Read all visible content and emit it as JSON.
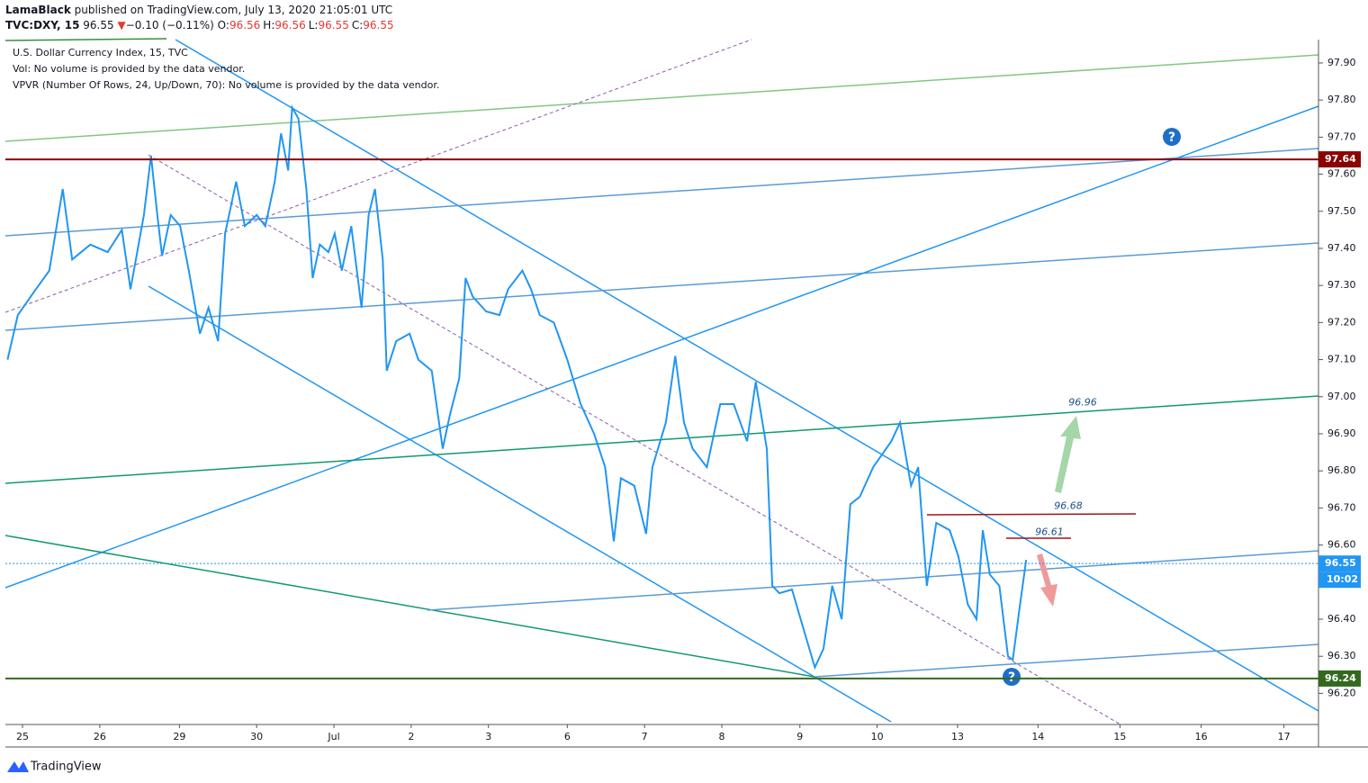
{
  "header": {
    "author": "LamaBlack",
    "published": "published on TradingView.com, July 13, 2020 21:05:01 UTC",
    "symbol": "TVC:DXY, 15",
    "price": "96.55",
    "arrow": "▼",
    "change": "−0.10 (−0.11%)",
    "ohlc": [
      {
        "label": "O:",
        "value": "96.56"
      },
      {
        "label": "H:",
        "value": "96.56"
      },
      {
        "label": "L:",
        "value": "96.55"
      },
      {
        "label": "C:",
        "value": "96.55"
      }
    ]
  },
  "legend": [
    "U.S. Dollar Currency Index, 15, TVC",
    "Vol: No volume is provided by the data vendor.",
    "VPVR (Number Of Rows, 24, Up/Down, 70): No volume is provided by the data vendor."
  ],
  "chart_data": {
    "type": "line",
    "x": [
      -0.19,
      -0.06,
      0.17,
      0.34,
      0.51,
      0.63,
      0.86,
      1.08,
      1.26,
      1.37,
      1.54,
      1.63,
      1.71,
      1.77,
      1.88,
      2.0,
      2.11,
      2.25,
      2.36,
      2.48,
      2.57,
      2.71,
      2.82,
      2.97,
      3.08,
      3.2,
      3.28,
      3.37,
      3.42,
      3.5,
      3.6,
      3.68,
      3.77,
      3.88,
      3.96,
      4.05,
      4.17,
      4.3,
      4.39,
      4.47,
      4.57,
      4.62,
      4.74,
      4.91,
      5.02,
      5.19,
      5.33,
      5.42,
      5.54,
      5.62,
      5.71,
      5.88,
      6.05,
      6.16,
      6.34,
      6.45,
      6.56,
      6.74,
      6.91,
      7.08,
      7.25,
      7.39,
      7.5,
      7.59,
      7.76,
      7.91,
      7.99,
      8.16,
      8.28,
      8.39,
      8.5,
      8.68,
      8.85,
      9.02,
      9.19,
      9.3,
      9.44,
      9.51,
      9.6,
      9.76,
      9.87,
      10.05,
      10.16,
      10.27,
      10.39,
      10.5,
      10.62,
      10.79,
      11.02,
      11.13,
      11.27,
      11.36,
      11.47,
      11.59,
      11.76,
      11.87,
      11.99,
      12.1,
      12.18,
      12.27,
      12.39,
      12.5,
      12.56,
      12.64,
      12.73
    ],
    "series": [
      {
        "name": "DXY",
        "color": "#2196f3",
        "values": [
          97.1,
          97.22,
          97.29,
          97.34,
          97.56,
          97.37,
          97.41,
          97.39,
          97.45,
          97.29,
          97.49,
          97.65,
          97.49,
          97.38,
          97.49,
          97.46,
          97.34,
          97.17,
          97.24,
          97.15,
          97.44,
          97.58,
          97.46,
          97.49,
          97.46,
          97.58,
          97.71,
          97.61,
          97.78,
          97.75,
          97.56,
          97.32,
          97.41,
          97.39,
          97.44,
          97.34,
          97.46,
          97.24,
          97.49,
          97.56,
          97.37,
          97.07,
          97.15,
          97.17,
          97.1,
          97.07,
          96.86,
          96.95,
          97.05,
          97.32,
          97.27,
          97.23,
          97.22,
          97.29,
          97.34,
          97.29,
          97.22,
          97.2,
          97.1,
          96.98,
          96.9,
          96.81,
          96.61,
          96.78,
          96.76,
          96.63,
          96.81,
          96.93,
          97.11,
          96.93,
          96.86,
          96.81,
          96.98,
          96.98,
          96.88,
          97.04,
          96.86,
          96.49,
          96.47,
          96.48,
          96.4,
          96.27,
          96.32,
          96.49,
          96.4,
          96.71,
          96.73,
          96.81,
          96.88,
          96.93,
          96.76,
          96.81,
          96.49,
          96.66,
          96.64,
          96.57,
          96.44,
          96.4,
          96.64,
          96.52,
          96.49,
          96.3,
          96.29,
          96.42,
          96.56
        ]
      }
    ],
    "xlim": [
      -0.217,
      16.438
    ],
    "ylim": [
      96.116,
      97.963
    ],
    "xticks": [
      {
        "value": 0,
        "label": "25"
      },
      {
        "value": 0.98,
        "label": "26"
      },
      {
        "value": 1.99,
        "label": "29"
      },
      {
        "value": 2.97,
        "label": "30"
      },
      {
        "value": 3.95,
        "label": "Jul"
      },
      {
        "value": 4.93,
        "label": "2"
      },
      {
        "value": 5.91,
        "label": "3"
      },
      {
        "value": 6.91,
        "label": "6"
      },
      {
        "value": 7.89,
        "label": "7"
      },
      {
        "value": 8.87,
        "label": "8"
      },
      {
        "value": 9.86,
        "label": "9"
      },
      {
        "value": 10.84,
        "label": "10"
      },
      {
        "value": 11.86,
        "label": "13"
      },
      {
        "value": 12.88,
        "label": "14"
      },
      {
        "value": 13.92,
        "label": "15"
      },
      {
        "value": 14.95,
        "label": "16"
      },
      {
        "value": 16.0,
        "label": "17"
      }
    ],
    "yticks": [
      {
        "value": 96.2,
        "label": "96.20"
      },
      {
        "value": 96.3,
        "label": "96.30"
      },
      {
        "value": 96.4,
        "label": "96.40"
      },
      {
        "value": 96.6,
        "label": "96.60"
      },
      {
        "value": 96.7,
        "label": "96.70"
      },
      {
        "value": 96.8,
        "label": "96.80"
      },
      {
        "value": 96.9,
        "label": "96.90"
      },
      {
        "value": 97.0,
        "label": "97.00"
      },
      {
        "value": 97.1,
        "label": "97.10"
      },
      {
        "value": 97.2,
        "label": "97.20"
      },
      {
        "value": 97.3,
        "label": "97.30"
      },
      {
        "value": 97.4,
        "label": "97.40"
      },
      {
        "value": 97.5,
        "label": "97.50"
      },
      {
        "value": 97.6,
        "label": "97.60"
      },
      {
        "value": 97.7,
        "label": "97.70"
      },
      {
        "value": 97.8,
        "label": "97.80"
      },
      {
        "value": 97.9,
        "label": "97.90"
      }
    ],
    "grid": false,
    "price_lines": [
      {
        "value": 97.64,
        "color": "#8b0000"
      },
      {
        "value": 96.24,
        "color": "#33691e"
      },
      {
        "value": 96.55,
        "color": "#2196f3"
      }
    ],
    "countdown": "10:02",
    "levels": [
      96.96,
      96.68,
      96.61
    ]
  },
  "footer": {
    "brand": "TradingView"
  }
}
